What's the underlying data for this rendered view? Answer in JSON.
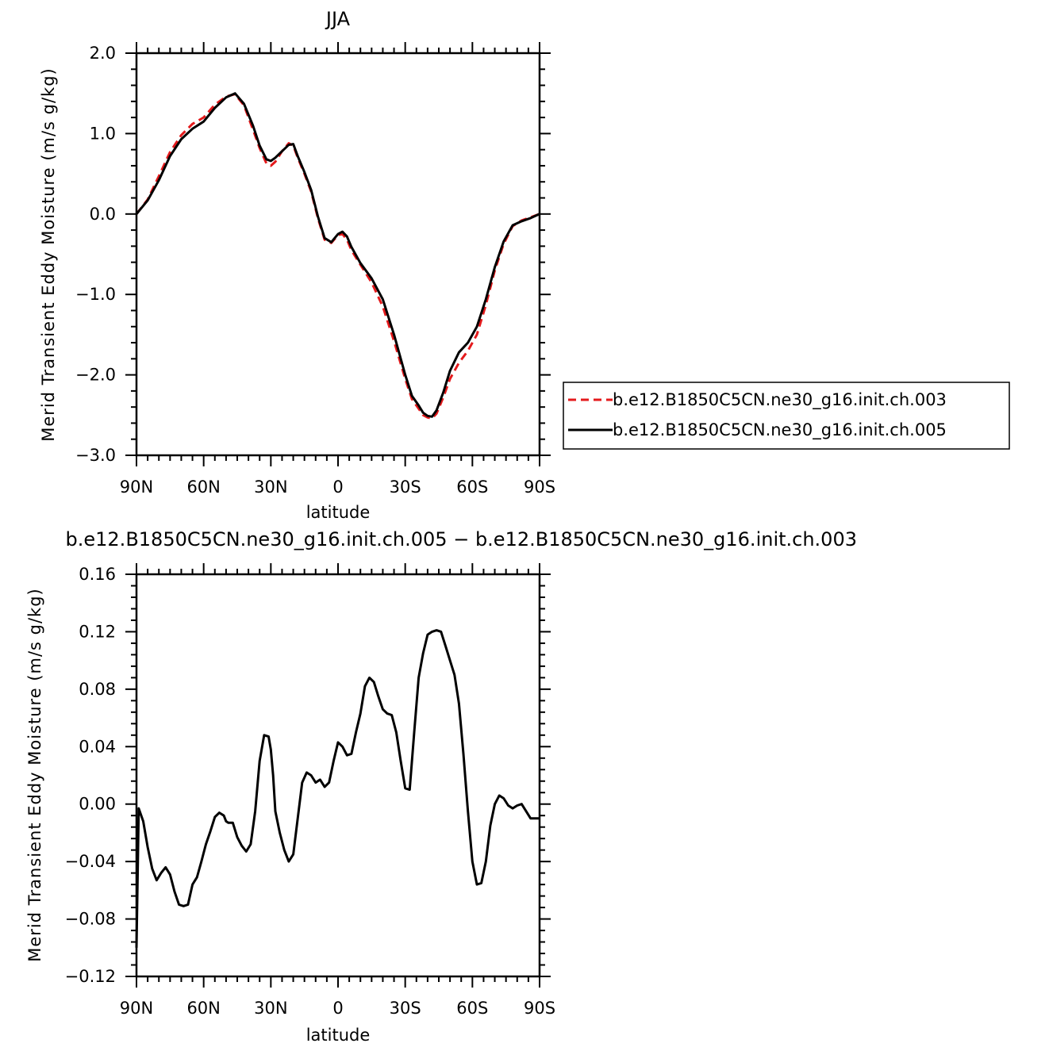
{
  "chart_data": [
    {
      "type": "line",
      "title": "JJA",
      "xlabel": "latitude",
      "ylabel": "Merid Transient Eddy Moisture (m/s g/kg)",
      "xlim": [
        90,
        -90
      ],
      "ylim": [
        -3.0,
        2.0
      ],
      "x_ticks": [
        90,
        60,
        30,
        0,
        -30,
        -60,
        -90
      ],
      "x_tick_labels": [
        "90N",
        "60N",
        "30N",
        "0",
        "30S",
        "60S",
        "90S"
      ],
      "y_ticks": [
        2.0,
        1.0,
        0.0,
        -1.0,
        -2.0,
        -3.0
      ],
      "y_tick_labels": [
        "2.0",
        "1.0",
        "0.0",
        "−1.0",
        "−2.0",
        "−3.0"
      ],
      "grid": false,
      "legend_position": "right",
      "series": [
        {
          "name": "b.e12.B1850C5CN.ne30_g16.init.ch.003",
          "color": "#e41a1c",
          "dash": "dashed",
          "x": [
            90,
            85,
            80,
            75,
            70,
            65,
            60,
            55,
            50,
            46,
            42,
            38,
            35,
            32,
            30,
            28,
            25,
            22,
            20,
            18,
            15,
            12,
            9,
            6,
            3,
            0,
            -2,
            -4,
            -6,
            -10,
            -15,
            -20,
            -25,
            -30,
            -33,
            -36,
            -38,
            -40,
            -42,
            -44,
            -47,
            -50,
            -54,
            -58,
            -62,
            -66,
            -70,
            -74,
            -78,
            -82,
            -86,
            -90
          ],
          "y": [
            0.0,
            0.18,
            0.47,
            0.77,
            0.98,
            1.12,
            1.2,
            1.36,
            1.46,
            1.49,
            1.35,
            1.05,
            0.82,
            0.63,
            0.6,
            0.65,
            0.78,
            0.88,
            0.85,
            0.7,
            0.5,
            0.28,
            -0.05,
            -0.32,
            -0.36,
            -0.26,
            -0.25,
            -0.32,
            -0.45,
            -0.63,
            -0.85,
            -1.15,
            -1.58,
            -2.05,
            -2.3,
            -2.42,
            -2.5,
            -2.53,
            -2.54,
            -2.48,
            -2.28,
            -2.05,
            -1.85,
            -1.7,
            -1.5,
            -1.13,
            -0.7,
            -0.37,
            -0.15,
            -0.08,
            -0.04,
            0.0
          ]
        },
        {
          "name": "b.e12.B1850C5CN.ne30_g16.init.ch.005",
          "color": "#000000",
          "dash": "solid",
          "x": [
            90,
            85,
            80,
            75,
            70,
            65,
            60,
            55,
            50,
            46,
            42,
            38,
            35,
            32,
            30,
            28,
            25,
            22,
            20,
            18,
            15,
            12,
            9,
            6,
            3,
            0,
            -2,
            -4,
            -6,
            -10,
            -15,
            -20,
            -25,
            -30,
            -33,
            -36,
            -38,
            -40,
            -42,
            -44,
            -47,
            -50,
            -54,
            -58,
            -62,
            -66,
            -70,
            -74,
            -78,
            -82,
            -86,
            -90
          ],
          "y": [
            0.0,
            0.17,
            0.42,
            0.72,
            0.93,
            1.06,
            1.15,
            1.32,
            1.45,
            1.5,
            1.37,
            1.1,
            0.85,
            0.68,
            0.66,
            0.7,
            0.78,
            0.86,
            0.87,
            0.72,
            0.52,
            0.3,
            -0.03,
            -0.3,
            -0.35,
            -0.25,
            -0.22,
            -0.28,
            -0.41,
            -0.61,
            -0.8,
            -1.06,
            -1.5,
            -2.0,
            -2.26,
            -2.38,
            -2.47,
            -2.51,
            -2.52,
            -2.44,
            -2.22,
            -1.95,
            -1.72,
            -1.6,
            -1.4,
            -1.06,
            -0.66,
            -0.34,
            -0.14,
            -0.09,
            -0.05,
            0.0
          ]
        }
      ]
    },
    {
      "type": "line",
      "title": "b.e12.B1850C5CN.ne30_g16.init.ch.005 − b.e12.B1850C5CN.ne30_g16.init.ch.003",
      "xlabel": "latitude",
      "ylabel": "Merid Transient Eddy Moisture (m/s g/kg)",
      "xlim": [
        90,
        -90
      ],
      "ylim": [
        -0.12,
        0.16
      ],
      "x_ticks": [
        90,
        60,
        30,
        0,
        -30,
        -60,
        -90
      ],
      "x_tick_labels": [
        "90N",
        "60N",
        "30N",
        "0",
        "30S",
        "60S",
        "90S"
      ],
      "y_ticks": [
        0.16,
        0.12,
        0.08,
        0.04,
        0.0,
        -0.04,
        -0.08,
        -0.12
      ],
      "y_tick_labels": [
        "0.16",
        "0.12",
        "0.08",
        "0.04",
        "0.00",
        "−0.04",
        "−0.08",
        "−0.12"
      ],
      "grid": false,
      "series": [
        {
          "color": "#000000",
          "dash": "solid",
          "x": [
            90,
            89,
            87,
            85,
            83,
            81,
            79,
            77,
            75,
            73,
            71,
            69,
            67,
            65,
            63,
            61,
            59,
            57,
            55,
            53,
            51,
            50,
            49,
            47,
            45,
            43,
            41,
            39,
            37,
            35,
            33,
            31,
            30,
            29,
            28,
            26,
            24,
            22,
            20,
            18,
            16,
            14,
            12,
            10,
            8,
            6,
            4,
            2,
            0,
            -2,
            -4,
            -6,
            -8,
            -10,
            -12,
            -14,
            -16,
            -18,
            -20,
            -22,
            -24,
            -26,
            -28,
            -30,
            -32,
            -34,
            -36,
            -38,
            -40,
            -42,
            -44,
            -46,
            -48,
            -50,
            -52,
            -54,
            -56,
            -58,
            -60,
            -62,
            -64,
            -66,
            -68,
            -70,
            -72,
            -74,
            -76,
            -78,
            -80,
            -82,
            -84,
            -86,
            -88,
            -90
          ],
          "y": [
            -0.1,
            -0.003,
            -0.012,
            -0.03,
            -0.045,
            -0.053,
            -0.048,
            -0.044,
            -0.049,
            -0.061,
            -0.07,
            -0.071,
            -0.07,
            -0.056,
            -0.051,
            -0.04,
            -0.028,
            -0.019,
            -0.009,
            -0.006,
            -0.008,
            -0.012,
            -0.013,
            -0.013,
            -0.023,
            -0.029,
            -0.033,
            -0.028,
            -0.005,
            0.03,
            0.048,
            0.047,
            0.038,
            0.02,
            -0.005,
            -0.02,
            -0.032,
            -0.04,
            -0.035,
            -0.01,
            0.015,
            0.022,
            0.02,
            0.015,
            0.017,
            0.012,
            0.015,
            0.03,
            0.043,
            0.04,
            0.034,
            0.035,
            0.05,
            0.063,
            0.082,
            0.088,
            0.085,
            0.075,
            0.066,
            0.063,
            0.062,
            0.05,
            0.03,
            0.011,
            0.01,
            0.05,
            0.088,
            0.105,
            0.118,
            0.12,
            0.121,
            0.12,
            0.11,
            0.1,
            0.09,
            0.07,
            0.035,
            -0.005,
            -0.04,
            -0.056,
            -0.055,
            -0.04,
            -0.015,
            0.0,
            0.006,
            0.004,
            -0.001,
            -0.003,
            -0.001,
            0.0,
            -0.005,
            -0.01,
            -0.01,
            -0.01
          ]
        }
      ]
    }
  ]
}
